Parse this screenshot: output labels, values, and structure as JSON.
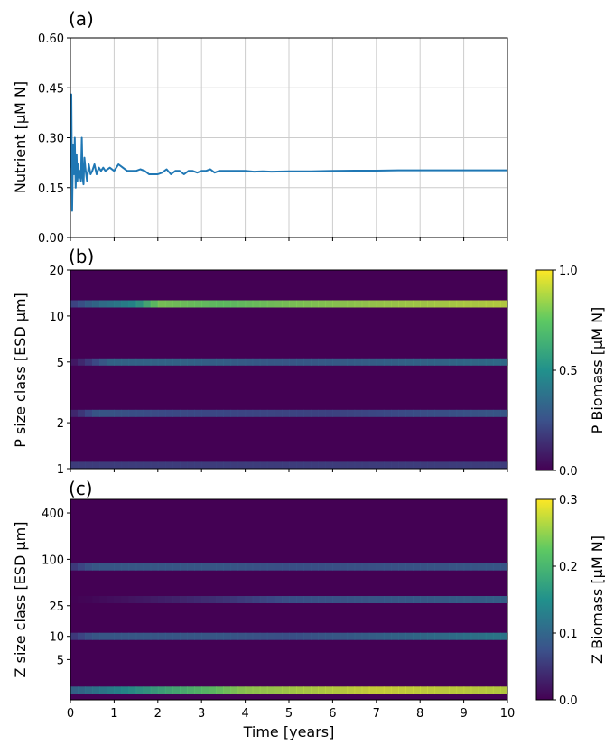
{
  "chart_data": [
    {
      "type": "line",
      "panel_label": "(a)",
      "title": "",
      "xlabel": "",
      "ylabel": "Nutrient [µM N]",
      "xlim": [
        0,
        10
      ],
      "ylim": [
        0.0,
        0.6
      ],
      "grid": true,
      "yticks": [
        "0.00",
        "0.15",
        "0.30",
        "0.45",
        "0.60"
      ],
      "series": [
        {
          "name": "",
          "color": "#1f77b4",
          "x": [
            0.0,
            0.02,
            0.04,
            0.06,
            0.08,
            0.1,
            0.12,
            0.14,
            0.16,
            0.18,
            0.2,
            0.22,
            0.24,
            0.26,
            0.28,
            0.3,
            0.32,
            0.35,
            0.38,
            0.42,
            0.46,
            0.5,
            0.55,
            0.6,
            0.65,
            0.7,
            0.75,
            0.8,
            0.9,
            1.0,
            1.05,
            1.1,
            1.2,
            1.3,
            1.4,
            1.5,
            1.6,
            1.7,
            1.8,
            1.9,
            2.0,
            2.1,
            2.2,
            2.3,
            2.4,
            2.5,
            2.6,
            2.7,
            2.8,
            2.9,
            3.0,
            3.1,
            3.2,
            3.3,
            3.4,
            3.5,
            3.6,
            3.7,
            3.8,
            3.9,
            4.0,
            4.2,
            4.4,
            4.6,
            5.0,
            5.5,
            6.0,
            6.5,
            7.0,
            7.5,
            8.0,
            8.5,
            9.0,
            9.5,
            10.0
          ],
          "values": [
            0.21,
            0.43,
            0.08,
            0.28,
            0.19,
            0.3,
            0.15,
            0.25,
            0.17,
            0.22,
            0.18,
            0.2,
            0.17,
            0.3,
            0.18,
            0.16,
            0.24,
            0.2,
            0.17,
            0.22,
            0.19,
            0.2,
            0.22,
            0.19,
            0.21,
            0.2,
            0.21,
            0.2,
            0.21,
            0.2,
            0.21,
            0.22,
            0.21,
            0.2,
            0.2,
            0.2,
            0.205,
            0.2,
            0.19,
            0.19,
            0.19,
            0.195,
            0.205,
            0.19,
            0.2,
            0.2,
            0.19,
            0.2,
            0.2,
            0.195,
            0.2,
            0.2,
            0.205,
            0.195,
            0.2,
            0.2,
            0.2,
            0.2,
            0.2,
            0.2,
            0.2,
            0.198,
            0.199,
            0.198,
            0.199,
            0.199,
            0.2,
            0.201,
            0.201,
            0.202,
            0.202,
            0.202,
            0.202,
            0.202,
            0.202
          ]
        }
      ]
    },
    {
      "type": "heatmap",
      "panel_label": "(b)",
      "title": "",
      "xlabel": "",
      "ylabel": "P size class [ESD µm]",
      "xlim": [
        0,
        10
      ],
      "yscale": "log",
      "ylim": [
        1,
        20
      ],
      "yticks": [
        "1",
        "2",
        "5",
        "10",
        "20"
      ],
      "colormap": "viridis",
      "colorbar_label": "P Biomass [µM N]",
      "clim": [
        0.0,
        1.0
      ],
      "colorbar_ticks": [
        "0.0",
        "0.5",
        "1.0"
      ],
      "bands": [
        {
          "label": "~12 µm",
          "center": 12,
          "intensity": [
            [
              0,
              0.2
            ],
            [
              0.5,
              0.35
            ],
            [
              1.5,
              0.5
            ],
            [
              2.0,
              0.8
            ],
            [
              3.5,
              0.75
            ],
            [
              5.0,
              0.8
            ],
            [
              7.0,
              0.85
            ],
            [
              10.0,
              0.9
            ]
          ]
        },
        {
          "label": "~5 µm",
          "center": 5,
          "intensity": [
            [
              0,
              0.05
            ],
            [
              0.9,
              0.35
            ],
            [
              2.5,
              0.35
            ],
            [
              5.0,
              0.3
            ],
            [
              10.0,
              0.38
            ]
          ]
        },
        {
          "label": "~2.3 µm",
          "center": 2.3,
          "intensity": [
            [
              0,
              0.1
            ],
            [
              0.6,
              0.3
            ],
            [
              2.0,
              0.25
            ],
            [
              6.0,
              0.22
            ],
            [
              10.0,
              0.3
            ]
          ]
        },
        {
          "label": "~1 µm",
          "center": 1.05,
          "intensity": [
            [
              0,
              0.2
            ],
            [
              10.0,
              0.2
            ]
          ]
        }
      ]
    },
    {
      "type": "heatmap",
      "panel_label": "(c)",
      "title": "",
      "xlabel": "Time [years]",
      "ylabel": "Z size class [ESD µm]",
      "xlim": [
        0,
        10
      ],
      "xticks": [
        "0",
        "1",
        "2",
        "3",
        "4",
        "5",
        "6",
        "7",
        "8",
        "9",
        "10"
      ],
      "yscale": "log",
      "ylim": [
        1.5,
        600
      ],
      "yticks": [
        "5",
        "10",
        "25",
        "100",
        "400"
      ],
      "colormap": "viridis",
      "colorbar_label": "Z Biomass [µM N]",
      "clim": [
        0.0,
        0.3
      ],
      "colorbar_ticks": [
        "0.0",
        "0.1",
        "0.2",
        "0.3"
      ],
      "bands": [
        {
          "label": "~80 µm",
          "center": 80,
          "intensity": [
            [
              0,
              0.05
            ],
            [
              0.5,
              0.09
            ],
            [
              3.5,
              0.09
            ],
            [
              5.0,
              0.08
            ],
            [
              10.0,
              0.09
            ]
          ]
        },
        {
          "label": "~30 µm",
          "center": 30,
          "intensity": [
            [
              0,
              0.0
            ],
            [
              3.5,
              0.05
            ],
            [
              5.0,
              0.08
            ],
            [
              10.0,
              0.1
            ]
          ]
        },
        {
          "label": "~10 µm",
          "center": 10,
          "intensity": [
            [
              0,
              0.05
            ],
            [
              0.5,
              0.09
            ],
            [
              3.5,
              0.09
            ],
            [
              5.0,
              0.08
            ],
            [
              10.0,
              0.13
            ]
          ]
        },
        {
          "label": "~2 µm",
          "center": 2.0,
          "intensity": [
            [
              0,
              0.1
            ],
            [
              2.0,
              0.18
            ],
            [
              4.0,
              0.25
            ],
            [
              7.0,
              0.28
            ],
            [
              10.0,
              0.27
            ]
          ]
        }
      ]
    }
  ]
}
